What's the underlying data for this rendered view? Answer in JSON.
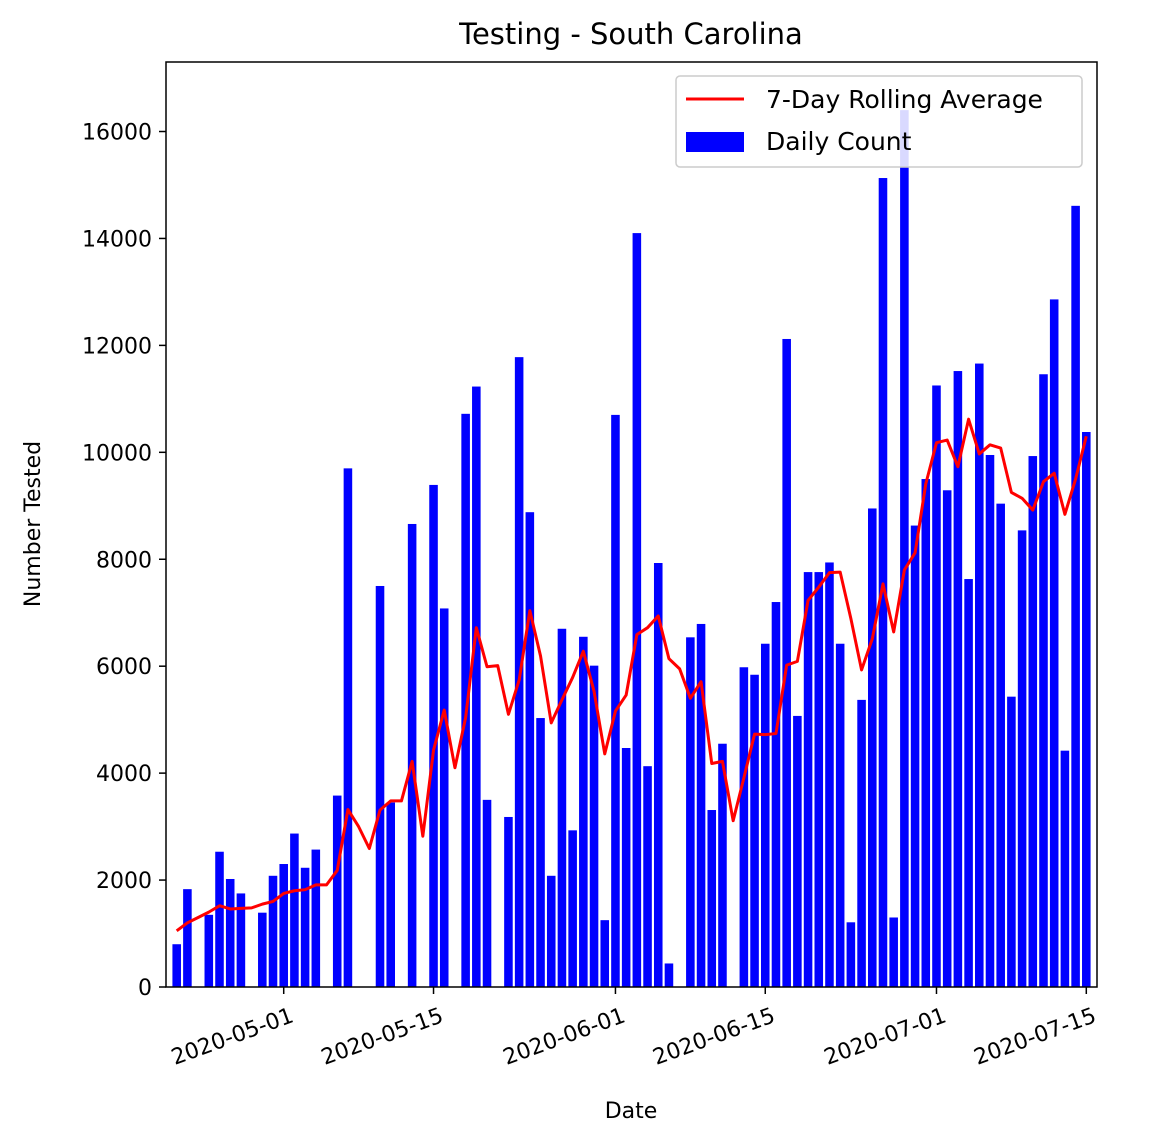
{
  "chart_data": {
    "type": "bar",
    "title": "Testing - South Carolina",
    "xlabel": "Date",
    "ylabel": "Number Tested",
    "ylim": [
      0,
      17300
    ],
    "xlim": [
      "2020-04-20",
      "2020-07-16"
    ],
    "yticks": [
      0,
      2000,
      4000,
      6000,
      8000,
      10000,
      12000,
      14000,
      16000
    ],
    "xticks": [
      "2020-05-01",
      "2020-05-15",
      "2020-06-01",
      "2020-06-15",
      "2020-07-01",
      "2020-07-15"
    ],
    "grid": false,
    "legend_position": "top-right",
    "legend": [
      {
        "label": "7-Day Rolling Average",
        "kind": "line",
        "color": "#ff0000"
      },
      {
        "label": "Daily Count",
        "kind": "patch",
        "color": "#0000ff"
      }
    ],
    "start_date": "2020-04-21",
    "series": [
      {
        "name": "Daily Count",
        "kind": "bar",
        "color": "#0000ff",
        "values": [
          800,
          1830,
          null,
          1350,
          2530,
          2020,
          1750,
          null,
          1390,
          2080,
          2300,
          2870,
          2230,
          2570,
          null,
          3580,
          9700,
          null,
          null,
          7500,
          3450,
          null,
          8660,
          null,
          9390,
          7080,
          null,
          10720,
          11230,
          3500,
          null,
          3180,
          11780,
          8880,
          5030,
          2080,
          6700,
          2930,
          6550,
          6010,
          1250,
          10700,
          4470,
          14100,
          4130,
          7930,
          440,
          null,
          6540,
          6790,
          3310,
          4550,
          null,
          5980,
          5840,
          6420,
          7200,
          12120,
          5070,
          7760,
          7760,
          7940,
          6420,
          1210,
          5370,
          8950,
          15130,
          1300,
          16400,
          8630,
          9500,
          11250,
          9290,
          11520,
          7630,
          11660,
          9950,
          9040,
          5430,
          8540,
          9930,
          11460,
          12860,
          4420,
          14610,
          10380
        ]
      },
      {
        "name": "7-Day Rolling Average",
        "kind": "line",
        "color": "#ff0000",
        "values": [
          1050,
          1200,
          1300,
          1400,
          1520,
          1460,
          1470,
          1480,
          1550,
          1600,
          1750,
          1800,
          1820,
          1910,
          1910,
          2180,
          3320,
          3000,
          2590,
          3310,
          3480,
          3480,
          4220,
          2820,
          4430,
          5180,
          4100,
          5040,
          6720,
          5990,
          6010,
          5100,
          5740,
          7040,
          6190,
          4940,
          5370,
          5790,
          6280,
          5530,
          4360,
          5160,
          5460,
          6590,
          6720,
          6940,
          6140,
          5950,
          5400,
          5710,
          4180,
          4220,
          3110,
          3910,
          4730,
          4720,
          4740,
          6020,
          6090,
          7230,
          7480,
          7750,
          7760,
          6890,
          5930,
          6510,
          7540,
          6640,
          7800,
          8120,
          9410,
          10180,
          10230,
          9730,
          10620,
          9970,
          10140,
          10080,
          9250,
          9140,
          8920,
          9450,
          9610,
          8840,
          9500,
          10300
        ]
      }
    ]
  }
}
